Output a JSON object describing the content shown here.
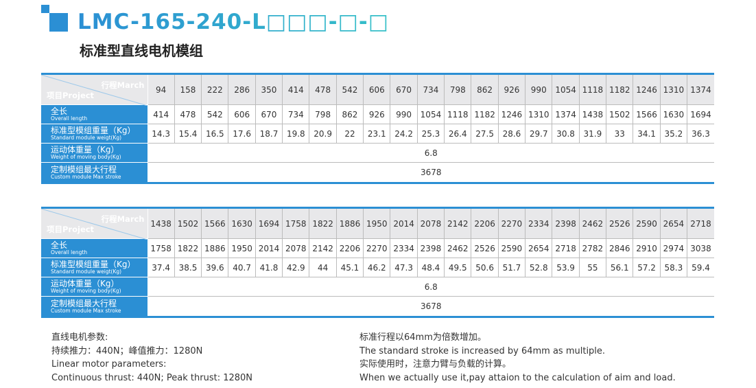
{
  "header": {
    "title": "LMC-165-240-L□□□-□-□",
    "subtitle": "标准型直线电机模组"
  },
  "labels": {
    "corner_march": "行程March",
    "corner_project": "项目Project",
    "rows": [
      {
        "cn": "全长",
        "en": "Overall length"
      },
      {
        "cn": "标准型模组重量（Kg）",
        "en": "Standard module weigt(Kg)"
      },
      {
        "cn": "运动体重量（Kg）",
        "en": "Weight of moving body(Kg)"
      },
      {
        "cn": "定制模组最大行程",
        "en": "Custom module Max stroke"
      }
    ]
  },
  "tables": [
    {
      "stroke": [
        "94",
        "158",
        "222",
        "286",
        "350",
        "414",
        "478",
        "542",
        "606",
        "670",
        "734",
        "798",
        "862",
        "926",
        "990",
        "1054",
        "1118",
        "1182",
        "1246",
        "1310",
        "1374"
      ],
      "length": [
        "414",
        "478",
        "542",
        "606",
        "670",
        "734",
        "798",
        "862",
        "926",
        "990",
        "1054",
        "1118",
        "1182",
        "1246",
        "1310",
        "1374",
        "1438",
        "1502",
        "1566",
        "1630",
        "1694"
      ],
      "weight": [
        "14.3",
        "15.4",
        "16.5",
        "17.6",
        "18.7",
        "19.8",
        "20.9",
        "22",
        "23.1",
        "24.2",
        "25.3",
        "26.4",
        "27.5",
        "28.6",
        "29.7",
        "30.8",
        "31.9",
        "33",
        "34.1",
        "35.2",
        "36.3"
      ],
      "moving": "6.8",
      "max": "3678"
    },
    {
      "stroke": [
        "1438",
        "1502",
        "1566",
        "1630",
        "1694",
        "1758",
        "1822",
        "1886",
        "1950",
        "2014",
        "2078",
        "2142",
        "2206",
        "2270",
        "2334",
        "2398",
        "2462",
        "2526",
        "2590",
        "2654",
        "2718"
      ],
      "length": [
        "1758",
        "1822",
        "1886",
        "1950",
        "2014",
        "2078",
        "2142",
        "2206",
        "2270",
        "2334",
        "2398",
        "2462",
        "2526",
        "2590",
        "2654",
        "2718",
        "2782",
        "2846",
        "2910",
        "2974",
        "3038"
      ],
      "weight": [
        "37.4",
        "38.5",
        "39.6",
        "40.7",
        "41.8",
        "42.9",
        "44",
        "45.1",
        "46.2",
        "47.3",
        "48.4",
        "49.5",
        "50.6",
        "51.7",
        "52.8",
        "53.9",
        "55",
        "56.1",
        "57.2",
        "58.3",
        "59.4"
      ],
      "moving": "6.8",
      "max": "3678"
    }
  ],
  "notes": {
    "left": [
      "直线电机参数:",
      "持续推力：440N；峰值推力：1280N",
      "Linear motor parameters:",
      "Continuous thrust: 440N;  Peak thrust: 1280N"
    ],
    "right": [
      "标准行程以64mm为倍数增加。",
      "The standard stroke is increased by 64mm as multiple.",
      "实际使用时，注意力臂与负载的计算。",
      "When we actually use it,pay attaion to the calculation of aim and load."
    ]
  }
}
